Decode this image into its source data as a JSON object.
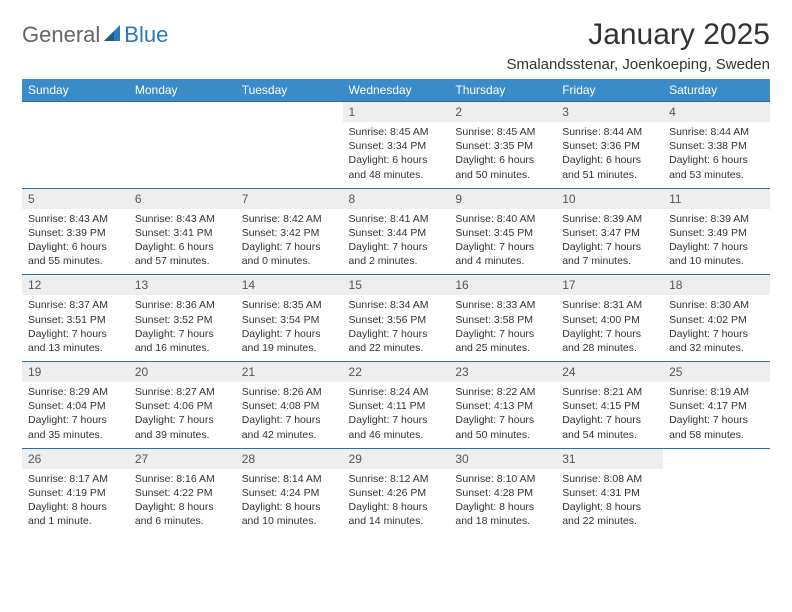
{
  "logo": {
    "text1": "General",
    "text2": "Blue"
  },
  "title": "January 2025",
  "subtitle": "Smalandsstenar, Joenkoeping, Sweden",
  "colors": {
    "header_bg": "#3b8bc9",
    "header_text": "#ffffff",
    "daynum_bg": "#eeeeee",
    "border": "#2a6fa3",
    "logo_gray": "#666666",
    "logo_blue": "#2a7ab8"
  },
  "weekdays": [
    "Sunday",
    "Monday",
    "Tuesday",
    "Wednesday",
    "Thursday",
    "Friday",
    "Saturday"
  ],
  "weeks": [
    [
      {
        "n": "",
        "sr": "",
        "ss": "",
        "dl": ""
      },
      {
        "n": "",
        "sr": "",
        "ss": "",
        "dl": ""
      },
      {
        "n": "",
        "sr": "",
        "ss": "",
        "dl": ""
      },
      {
        "n": "1",
        "sr": "Sunrise: 8:45 AM",
        "ss": "Sunset: 3:34 PM",
        "dl": "Daylight: 6 hours and 48 minutes."
      },
      {
        "n": "2",
        "sr": "Sunrise: 8:45 AM",
        "ss": "Sunset: 3:35 PM",
        "dl": "Daylight: 6 hours and 50 minutes."
      },
      {
        "n": "3",
        "sr": "Sunrise: 8:44 AM",
        "ss": "Sunset: 3:36 PM",
        "dl": "Daylight: 6 hours and 51 minutes."
      },
      {
        "n": "4",
        "sr": "Sunrise: 8:44 AM",
        "ss": "Sunset: 3:38 PM",
        "dl": "Daylight: 6 hours and 53 minutes."
      }
    ],
    [
      {
        "n": "5",
        "sr": "Sunrise: 8:43 AM",
        "ss": "Sunset: 3:39 PM",
        "dl": "Daylight: 6 hours and 55 minutes."
      },
      {
        "n": "6",
        "sr": "Sunrise: 8:43 AM",
        "ss": "Sunset: 3:41 PM",
        "dl": "Daylight: 6 hours and 57 minutes."
      },
      {
        "n": "7",
        "sr": "Sunrise: 8:42 AM",
        "ss": "Sunset: 3:42 PM",
        "dl": "Daylight: 7 hours and 0 minutes."
      },
      {
        "n": "8",
        "sr": "Sunrise: 8:41 AM",
        "ss": "Sunset: 3:44 PM",
        "dl": "Daylight: 7 hours and 2 minutes."
      },
      {
        "n": "9",
        "sr": "Sunrise: 8:40 AM",
        "ss": "Sunset: 3:45 PM",
        "dl": "Daylight: 7 hours and 4 minutes."
      },
      {
        "n": "10",
        "sr": "Sunrise: 8:39 AM",
        "ss": "Sunset: 3:47 PM",
        "dl": "Daylight: 7 hours and 7 minutes."
      },
      {
        "n": "11",
        "sr": "Sunrise: 8:39 AM",
        "ss": "Sunset: 3:49 PM",
        "dl": "Daylight: 7 hours and 10 minutes."
      }
    ],
    [
      {
        "n": "12",
        "sr": "Sunrise: 8:37 AM",
        "ss": "Sunset: 3:51 PM",
        "dl": "Daylight: 7 hours and 13 minutes."
      },
      {
        "n": "13",
        "sr": "Sunrise: 8:36 AM",
        "ss": "Sunset: 3:52 PM",
        "dl": "Daylight: 7 hours and 16 minutes."
      },
      {
        "n": "14",
        "sr": "Sunrise: 8:35 AM",
        "ss": "Sunset: 3:54 PM",
        "dl": "Daylight: 7 hours and 19 minutes."
      },
      {
        "n": "15",
        "sr": "Sunrise: 8:34 AM",
        "ss": "Sunset: 3:56 PM",
        "dl": "Daylight: 7 hours and 22 minutes."
      },
      {
        "n": "16",
        "sr": "Sunrise: 8:33 AM",
        "ss": "Sunset: 3:58 PM",
        "dl": "Daylight: 7 hours and 25 minutes."
      },
      {
        "n": "17",
        "sr": "Sunrise: 8:31 AM",
        "ss": "Sunset: 4:00 PM",
        "dl": "Daylight: 7 hours and 28 minutes."
      },
      {
        "n": "18",
        "sr": "Sunrise: 8:30 AM",
        "ss": "Sunset: 4:02 PM",
        "dl": "Daylight: 7 hours and 32 minutes."
      }
    ],
    [
      {
        "n": "19",
        "sr": "Sunrise: 8:29 AM",
        "ss": "Sunset: 4:04 PM",
        "dl": "Daylight: 7 hours and 35 minutes."
      },
      {
        "n": "20",
        "sr": "Sunrise: 8:27 AM",
        "ss": "Sunset: 4:06 PM",
        "dl": "Daylight: 7 hours and 39 minutes."
      },
      {
        "n": "21",
        "sr": "Sunrise: 8:26 AM",
        "ss": "Sunset: 4:08 PM",
        "dl": "Daylight: 7 hours and 42 minutes."
      },
      {
        "n": "22",
        "sr": "Sunrise: 8:24 AM",
        "ss": "Sunset: 4:11 PM",
        "dl": "Daylight: 7 hours and 46 minutes."
      },
      {
        "n": "23",
        "sr": "Sunrise: 8:22 AM",
        "ss": "Sunset: 4:13 PM",
        "dl": "Daylight: 7 hours and 50 minutes."
      },
      {
        "n": "24",
        "sr": "Sunrise: 8:21 AM",
        "ss": "Sunset: 4:15 PM",
        "dl": "Daylight: 7 hours and 54 minutes."
      },
      {
        "n": "25",
        "sr": "Sunrise: 8:19 AM",
        "ss": "Sunset: 4:17 PM",
        "dl": "Daylight: 7 hours and 58 minutes."
      }
    ],
    [
      {
        "n": "26",
        "sr": "Sunrise: 8:17 AM",
        "ss": "Sunset: 4:19 PM",
        "dl": "Daylight: 8 hours and 1 minute."
      },
      {
        "n": "27",
        "sr": "Sunrise: 8:16 AM",
        "ss": "Sunset: 4:22 PM",
        "dl": "Daylight: 8 hours and 6 minutes."
      },
      {
        "n": "28",
        "sr": "Sunrise: 8:14 AM",
        "ss": "Sunset: 4:24 PM",
        "dl": "Daylight: 8 hours and 10 minutes."
      },
      {
        "n": "29",
        "sr": "Sunrise: 8:12 AM",
        "ss": "Sunset: 4:26 PM",
        "dl": "Daylight: 8 hours and 14 minutes."
      },
      {
        "n": "30",
        "sr": "Sunrise: 8:10 AM",
        "ss": "Sunset: 4:28 PM",
        "dl": "Daylight: 8 hours and 18 minutes."
      },
      {
        "n": "31",
        "sr": "Sunrise: 8:08 AM",
        "ss": "Sunset: 4:31 PM",
        "dl": "Daylight: 8 hours and 22 minutes."
      },
      {
        "n": "",
        "sr": "",
        "ss": "",
        "dl": ""
      }
    ]
  ]
}
